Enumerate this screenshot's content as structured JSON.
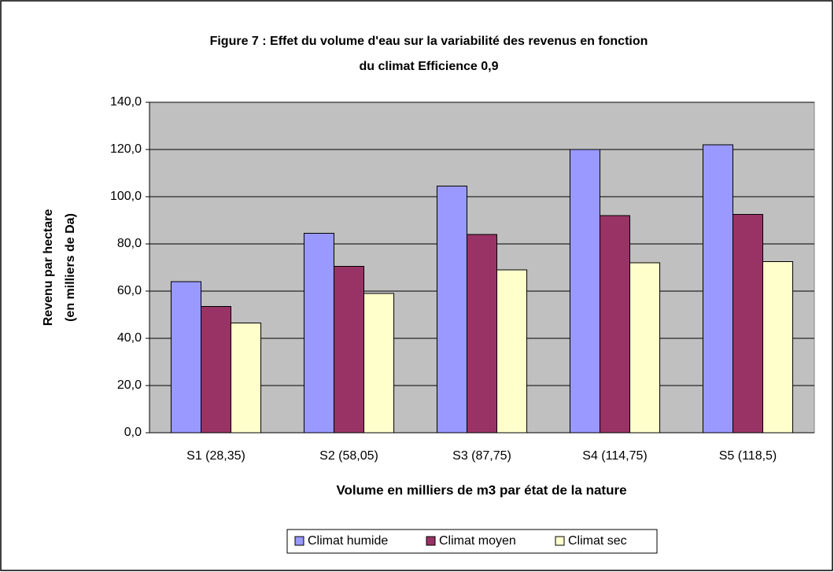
{
  "chart_data": {
    "type": "bar",
    "title": [
      "Figure 7 : Effet du volume d'eau sur la variabilité des revenus en fonction",
      "du climat Efficience 0,9"
    ],
    "x_label": "Volume en milliers de m3 par état de la nature",
    "y_label": [
      "Revenu par hectare",
      "(en milliers de Da)"
    ],
    "categories": [
      "S1 (28,35)",
      "S2 (58,05)",
      "S3 (87,75)",
      "S4 (114,75)",
      "S5 (118,5)"
    ],
    "series": [
      {
        "name": "Climat humide",
        "color": "#9999ff",
        "values": [
          64,
          84.5,
          104.5,
          120,
          122
        ]
      },
      {
        "name": "Climat moyen",
        "color": "#993366",
        "values": [
          53.5,
          70.5,
          84,
          92,
          92.5
        ]
      },
      {
        "name": "Climat sec",
        "color": "#ffffcc",
        "values": [
          46.5,
          59,
          69,
          72,
          72.5
        ]
      }
    ],
    "ylim": [
      0,
      140
    ],
    "yticks": [
      {
        "value": 0,
        "label": "0,0"
      },
      {
        "value": 20,
        "label": "20,0"
      },
      {
        "value": 40,
        "label": "40,0"
      },
      {
        "value": 60,
        "label": "60,0"
      },
      {
        "value": 80,
        "label": "80,0"
      },
      {
        "value": 100,
        "label": "100,0"
      },
      {
        "value": 120,
        "label": "120,0"
      },
      {
        "value": 140,
        "label": "140,0"
      }
    ],
    "grid": true,
    "legend": "bottom",
    "plot_background": "#c0c0c0"
  }
}
